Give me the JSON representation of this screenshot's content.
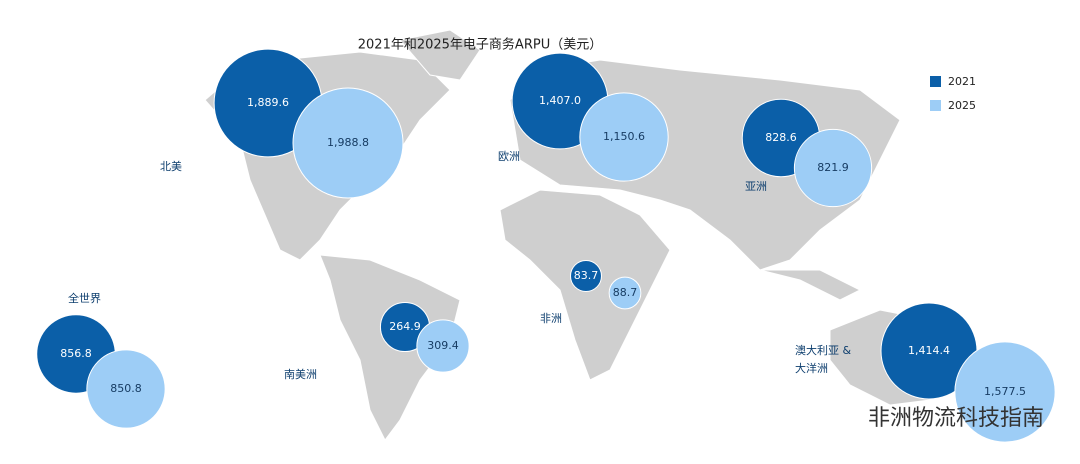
{
  "chart_data": {
    "type": "bubble-map",
    "title": "2021年和2025年电子商务ARPU（美元）",
    "categories": [
      "北美",
      "欧洲",
      "亚洲",
      "非洲",
      "南美洲",
      "澳大利亚 & 大洋洲",
      "全世界"
    ],
    "series": [
      {
        "name": "2021",
        "color": "#0b5fa8",
        "values": [
          1889.6,
          1407.0,
          828.6,
          83.7,
          264.9,
          1414.4,
          856.8
        ],
        "value_labels": [
          "1,889.6",
          "1,407.0",
          "828.6",
          "83.7",
          "264.9",
          "1,414.4",
          "856.8"
        ]
      },
      {
        "name": "2025",
        "color": "#9dcdf6",
        "values": [
          1988.8,
          1150.6,
          821.9,
          88.7,
          309.4,
          1577.5,
          850.8
        ],
        "value_labels": [
          "1,988.8",
          "1,150.6",
          "821.9",
          "88.7",
          "309.4",
          "1,577.5",
          "850.8"
        ]
      }
    ],
    "legend": "top-right"
  },
  "watermark": "非洲物流科技指南"
}
